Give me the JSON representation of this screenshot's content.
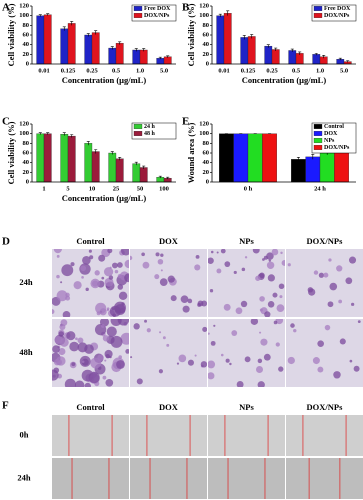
{
  "panel_labels": [
    "A",
    "B",
    "C",
    "D",
    "E",
    "F"
  ],
  "chart_data": [
    {
      "type": "bar",
      "ylabel": "Cell viability (%)",
      "xlabel": "Concentration (μg/mL)",
      "categories": [
        "0.01",
        "0.125",
        "0.25",
        "0.5",
        "1.0",
        "5.0"
      ],
      "series": [
        {
          "name": "Free DOX",
          "color": "#1f23c8",
          "values": [
            100,
            73,
            60,
            33,
            29,
            12
          ],
          "errors": [
            2,
            4,
            3,
            3,
            3,
            2
          ]
        },
        {
          "name": "DOX/NPs",
          "color": "#e0141e",
          "values": [
            102,
            84,
            65,
            43,
            29,
            15
          ],
          "errors": [
            2,
            4,
            4,
            3,
            3,
            2
          ]
        }
      ],
      "ylim": [
        0,
        120
      ],
      "yticks": [
        0,
        20,
        40,
        60,
        80,
        100,
        120
      ],
      "legend": "upper right"
    },
    {
      "type": "bar",
      "ylabel": "Cell viability (%)",
      "xlabel": "Concentration (μg/mL)",
      "categories": [
        "0.01",
        "0.125",
        "0.25",
        "0.5",
        "1.0",
        "5.0"
      ],
      "series": [
        {
          "name": "Free DOX",
          "color": "#1f23c8",
          "values": [
            100,
            55,
            37,
            28,
            20,
            10
          ],
          "errors": [
            3,
            4,
            3,
            3,
            2,
            2
          ]
        },
        {
          "name": "DOX/NPs",
          "color": "#e0141e",
          "values": [
            105,
            57,
            30,
            22,
            15,
            5
          ],
          "errors": [
            5,
            4,
            3,
            3,
            3,
            2
          ]
        }
      ],
      "ylim": [
        0,
        120
      ],
      "yticks": [
        0,
        20,
        40,
        60,
        80,
        100,
        120
      ],
      "legend": "upper right"
    },
    {
      "type": "bar",
      "ylabel": "Cell viability (%)",
      "xlabel": "Concentration (μg/mL)",
      "categories": [
        "1",
        "5",
        "10",
        "25",
        "50",
        "100"
      ],
      "series": [
        {
          "name": "24 h",
          "color": "#33cc33",
          "values": [
            100,
            99,
            80,
            60,
            38,
            10
          ],
          "errors": [
            2,
            3,
            4,
            3,
            3,
            2
          ]
        },
        {
          "name": "48 h",
          "color": "#9b1b3b",
          "values": [
            100,
            95,
            63,
            48,
            30,
            8
          ],
          "errors": [
            2,
            3,
            4,
            3,
            3,
            2
          ]
        }
      ],
      "ylim": [
        0,
        120
      ],
      "yticks": [
        0,
        20,
        40,
        60,
        80,
        100,
        120
      ],
      "legend": "upper right"
    },
    {
      "type": "bar",
      "ylabel": "Wound area (%)",
      "categories": [
        "0 h",
        "24 h"
      ],
      "series": [
        {
          "name": "Control",
          "color": "#000000",
          "values": [
            100,
            47
          ],
          "errors": [
            0,
            4
          ]
        },
        {
          "name": "DOX",
          "color": "#1a1aff",
          "values": [
            100,
            52
          ],
          "errors": [
            0,
            5
          ]
        },
        {
          "name": "NPs",
          "color": "#22dd22",
          "values": [
            100,
            60
          ],
          "errors": [
            0,
            4
          ],
          "annotations": [
            null,
            "*"
          ]
        },
        {
          "name": "DOX/NPs",
          "color": "#ee1111",
          "values": [
            100,
            77
          ],
          "errors": [
            0,
            3
          ],
          "annotations": [
            null,
            "**"
          ]
        }
      ],
      "ylim": [
        0,
        120
      ],
      "yticks": [
        0,
        20,
        40,
        60,
        80,
        100,
        120
      ],
      "legend": "upper right"
    }
  ],
  "panel_d": {
    "columns": [
      "Control",
      "DOX",
      "NPs",
      "DOX/NPs"
    ],
    "rows": [
      "24h",
      "48h"
    ]
  },
  "panel_f": {
    "columns": [
      "Control",
      "DOX",
      "NPs",
      "DOX/NPs"
    ],
    "rows": [
      "0h",
      "24h"
    ]
  }
}
